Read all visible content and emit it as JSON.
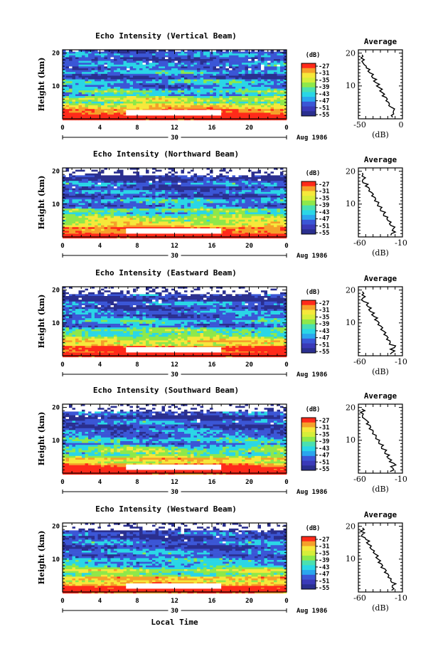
{
  "xaxis_label": "Local Time",
  "colors": {
    "red": "#ff2a1a",
    "blue_dark": "#2a2f8f",
    "blue": "#3b56d6",
    "cyan": "#2ad6e6",
    "green": "#8ee84a",
    "yellow": "#f6e83a",
    "orange": "#f5a02a",
    "white": "#ffffff"
  },
  "chart_data": [
    {
      "type": "heatmap",
      "title": "Echo Intensity (Vertical Beam)",
      "ylabel": "Height (km)",
      "y_ticks": [
        "10",
        "20"
      ],
      "x_ticks": [
        "0",
        "4",
        "8",
        "12",
        "16",
        "20",
        "0"
      ],
      "date_label": "30",
      "month_label": "Aug 1986",
      "colorbar": {
        "unit": "(dB)",
        "levels": [
          "-27",
          "-31",
          "-35",
          "-39",
          "-43",
          "-47",
          "-51",
          "-55"
        ]
      },
      "profile": {
        "title": "Average",
        "x_ticks": [
          "-50",
          "0"
        ],
        "y_ticks": [
          "10",
          "20"
        ],
        "xlabel": "(dB)"
      }
    },
    {
      "type": "heatmap",
      "title": "Echo Intensity (Northward Beam)",
      "ylabel": "Height (km)",
      "y_ticks": [
        "10",
        "20"
      ],
      "x_ticks": [
        "0",
        "4",
        "8",
        "12",
        "16",
        "20",
        "0"
      ],
      "date_label": "30",
      "month_label": "Aug 1986",
      "colorbar": {
        "unit": "(dB)",
        "levels": [
          "-27",
          "-31",
          "-35",
          "-39",
          "-43",
          "-47",
          "-51",
          "-55"
        ]
      },
      "profile": {
        "title": "Average",
        "x_ticks": [
          "-60",
          "-10"
        ],
        "y_ticks": [
          "10",
          "20"
        ],
        "xlabel": "(dB)"
      }
    },
    {
      "type": "heatmap",
      "title": "Echo Intensity (Eastward Beam)",
      "ylabel": "Height (km)",
      "y_ticks": [
        "10",
        "20"
      ],
      "x_ticks": [
        "0",
        "4",
        "8",
        "12",
        "16",
        "20",
        "0"
      ],
      "date_label": "30",
      "month_label": "Aug 1986",
      "colorbar": {
        "unit": "(dB)",
        "levels": [
          "-27",
          "-31",
          "-35",
          "-39",
          "-43",
          "-47",
          "-51",
          "-55"
        ]
      },
      "profile": {
        "title": "Average",
        "x_ticks": [
          "-60",
          "-10"
        ],
        "y_ticks": [
          "10",
          "20"
        ],
        "xlabel": "(dB)"
      }
    },
    {
      "type": "heatmap",
      "title": "Echo Intensity (Southward Beam)",
      "ylabel": "Height (km)",
      "y_ticks": [
        "10",
        "20"
      ],
      "x_ticks": [
        "0",
        "4",
        "8",
        "12",
        "16",
        "20",
        "0"
      ],
      "date_label": "30",
      "month_label": "Aug 1986",
      "colorbar": {
        "unit": "(dB)",
        "levels": [
          "-27",
          "-31",
          "-35",
          "-39",
          "-43",
          "-47",
          "-51",
          "-55"
        ]
      },
      "profile": {
        "title": "Average",
        "x_ticks": [
          "-60",
          "-10"
        ],
        "y_ticks": [
          "10",
          "20"
        ],
        "xlabel": "(dB)"
      }
    },
    {
      "type": "heatmap",
      "title": "Echo Intensity (Westward Beam)",
      "ylabel": "Height (km)",
      "y_ticks": [
        "10",
        "20"
      ],
      "x_ticks": [
        "0",
        "4",
        "8",
        "12",
        "16",
        "20",
        "0"
      ],
      "date_label": "30",
      "month_label": "Aug 1986",
      "colorbar": {
        "unit": "(dB)",
        "levels": [
          "-27",
          "-31",
          "-35",
          "-39",
          "-43",
          "-47",
          "-51",
          "-55"
        ]
      },
      "profile": {
        "title": "Average",
        "x_ticks": [
          "-60",
          "-10"
        ],
        "y_ticks": [
          "10",
          "20"
        ],
        "xlabel": "(dB)"
      }
    }
  ]
}
